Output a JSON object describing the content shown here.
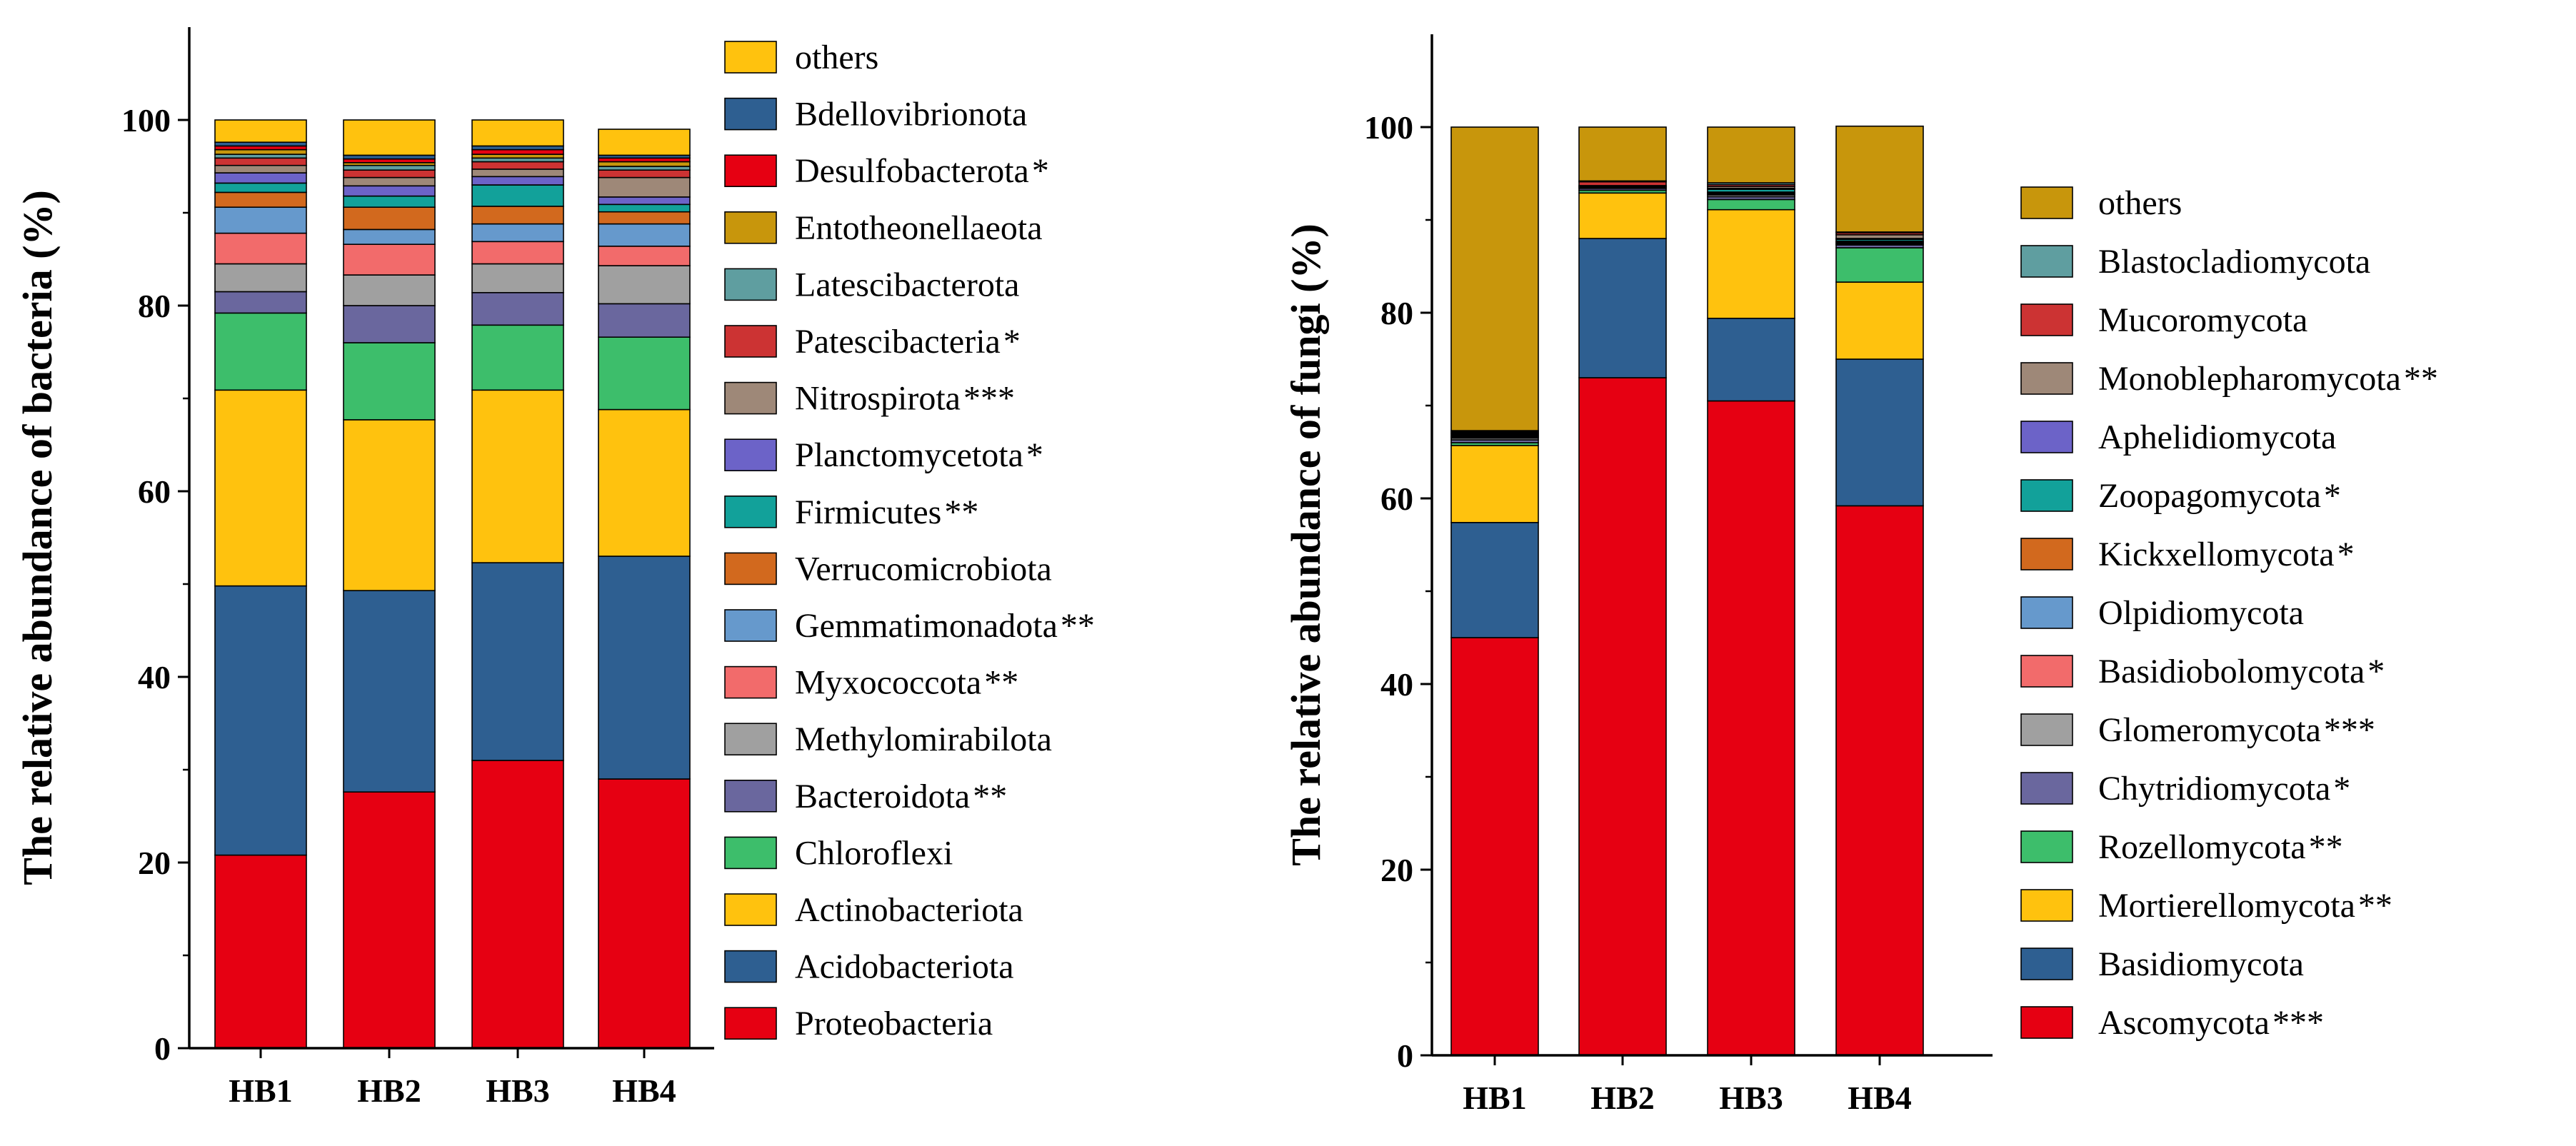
{
  "chart_data": [
    {
      "type": "bar",
      "stacked": true,
      "title": "",
      "xlabel": "",
      "ylabel": "The relative abundance of bacteria (%)",
      "ylim": [
        0,
        110
      ],
      "yticks": [
        0,
        20,
        40,
        60,
        80,
        100
      ],
      "categories": [
        "HB1",
        "HB2",
        "HB3",
        "HB4"
      ],
      "legend_position": "right",
      "series": [
        {
          "name": "Proteobacteria",
          "sig": "",
          "color": "#E60012",
          "values": [
            20.8,
            27.6,
            31.0,
            29.0
          ]
        },
        {
          "name": "Acidobacteriota",
          "sig": "",
          "color": "#2E5F91",
          "values": [
            29.0,
            21.7,
            21.3,
            24.0
          ]
        },
        {
          "name": "Actinobacteriota",
          "sig": "",
          "color": "#FFC20E",
          "values": [
            21.1,
            18.4,
            18.6,
            15.8
          ]
        },
        {
          "name": "Chloroflexi",
          "sig": "",
          "color": "#3DBE6B",
          "values": [
            8.3,
            8.3,
            7.0,
            7.8
          ]
        },
        {
          "name": "Bacteroidota",
          "sig": "**",
          "color": "#6A679E",
          "values": [
            2.3,
            4.0,
            3.5,
            3.6
          ]
        },
        {
          "name": "Methylomirabilota",
          "sig": "",
          "color": "#A0A0A0",
          "values": [
            3.0,
            3.3,
            3.1,
            4.1
          ]
        },
        {
          "name": "Myxococcota",
          "sig": "**",
          "color": "#F26B6B",
          "values": [
            3.3,
            3.3,
            2.4,
            2.1
          ]
        },
        {
          "name": "Gemmatimonadota",
          "sig": "**",
          "color": "#6699CC",
          "values": [
            2.8,
            1.6,
            1.9,
            2.4
          ]
        },
        {
          "name": "Verrucomicrobiota",
          "sig": "",
          "color": "#D2691E",
          "values": [
            1.6,
            2.4,
            1.9,
            1.3
          ]
        },
        {
          "name": "Firmicutes",
          "sig": "**",
          "color": "#12A19A",
          "values": [
            1.0,
            1.2,
            2.3,
            0.8
          ]
        },
        {
          "name": "Planctomycetota",
          "sig": "*",
          "color": "#6C63C8",
          "values": [
            1.1,
            1.1,
            0.9,
            0.8
          ]
        },
        {
          "name": "Nitrospirota",
          "sig": "***",
          "color": "#9E8878",
          "values": [
            0.8,
            0.9,
            0.8,
            2.1
          ]
        },
        {
          "name": "Patescibacteria",
          "sig": "*",
          "color": "#CC3333",
          "values": [
            0.8,
            0.8,
            0.8,
            0.8
          ]
        },
        {
          "name": "Latescibacterota",
          "sig": "",
          "color": "#5F9EA0",
          "values": [
            0.4,
            0.5,
            0.4,
            0.4
          ]
        },
        {
          "name": "Entotheonellaeota",
          "sig": "",
          "color": "#C8960C",
          "values": [
            0.5,
            0.3,
            0.4,
            0.5
          ]
        },
        {
          "name": "Desulfobacterota",
          "sig": "*",
          "color": "#E60012",
          "values": [
            0.4,
            0.4,
            0.5,
            0.4
          ]
        },
        {
          "name": "Bdellovibrionota",
          "sig": "",
          "color": "#2E5F91",
          "values": [
            0.4,
            0.4,
            0.4,
            0.3
          ]
        },
        {
          "name": "others",
          "sig": "",
          "color": "#FFC20E",
          "values": [
            2.4,
            3.8,
            2.8,
            2.8
          ]
        }
      ]
    },
    {
      "type": "bar",
      "stacked": true,
      "title": "",
      "xlabel": "",
      "ylabel": "The relative abundance of fungi (%)",
      "ylim": [
        0,
        110
      ],
      "yticks": [
        0,
        20,
        40,
        60,
        80,
        100
      ],
      "categories": [
        "HB1",
        "HB2",
        "HB3",
        "HB4"
      ],
      "legend_position": "right",
      "series": [
        {
          "name": "Ascomycota",
          "sig": "***",
          "color": "#E60012",
          "values": [
            45.0,
            73.0,
            70.5,
            59.2
          ]
        },
        {
          "name": "Basidiomycota",
          "sig": "",
          "color": "#2E5F91",
          "values": [
            12.4,
            15.0,
            8.9,
            15.8
          ]
        },
        {
          "name": "Mortierellomycota",
          "sig": "**",
          "color": "#FFC20E",
          "values": [
            8.3,
            4.9,
            11.7,
            8.3
          ]
        },
        {
          "name": "Rozellomycota",
          "sig": "**",
          "color": "#3DBE6B",
          "values": [
            0.3,
            0.3,
            1.1,
            3.7
          ]
        },
        {
          "name": "Chytridiomycota",
          "sig": "*",
          "color": "#6A679E",
          "values": [
            0.3,
            0.2,
            0.3,
            0.3
          ]
        },
        {
          "name": "Glomeromycota",
          "sig": "***",
          "color": "#A0A0A0",
          "values": [
            0.2,
            0.1,
            0.2,
            0.1
          ]
        },
        {
          "name": "Basidiobolomycota",
          "sig": "*",
          "color": "#F26B6B",
          "values": [
            0.1,
            0.0,
            0.1,
            0.1
          ]
        },
        {
          "name": "Olpidiomycota",
          "sig": "",
          "color": "#6699CC",
          "values": [
            0.1,
            0.0,
            0.1,
            0.1
          ]
        },
        {
          "name": "Kickxellomycota",
          "sig": "*",
          "color": "#D2691E",
          "values": [
            0.1,
            0.1,
            0.1,
            0.1
          ]
        },
        {
          "name": "Zoopagomycota",
          "sig": "*",
          "color": "#12A19A",
          "values": [
            0.1,
            0.1,
            0.3,
            0.2
          ]
        },
        {
          "name": "Aphelidiomycota",
          "sig": "",
          "color": "#6C63C8",
          "values": [
            0.1,
            0.0,
            0.1,
            0.1
          ]
        },
        {
          "name": "Monoblepharomycota",
          "sig": "**",
          "color": "#9E8878",
          "values": [
            0.1,
            0.0,
            0.2,
            0.4
          ]
        },
        {
          "name": "Mucoromycota",
          "sig": "",
          "color": "#CC3333",
          "values": [
            0.1,
            0.4,
            0.2,
            0.2
          ]
        },
        {
          "name": "Blastocladiomycota",
          "sig": "",
          "color": "#5F9EA0",
          "values": [
            0.1,
            0.1,
            0.2,
            0.1
          ]
        },
        {
          "name": "others",
          "sig": "",
          "color": "#C8960C",
          "values": [
            32.7,
            5.8,
            6.0,
            11.4
          ]
        }
      ]
    }
  ]
}
